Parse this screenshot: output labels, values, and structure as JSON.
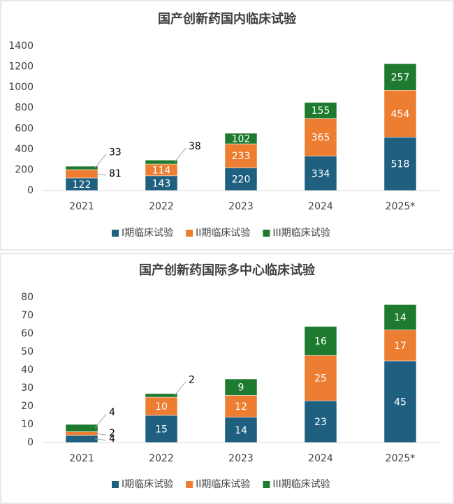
{
  "chart_data": [
    {
      "type": "stacked_bar",
      "title": "国产创新药国内临床试验",
      "categories": [
        "2021",
        "2022",
        "2023",
        "2024",
        "2025*"
      ],
      "series": [
        {
          "name": "I期临床试验",
          "color": "#1f5f7f",
          "values": [
            122,
            143,
            220,
            334,
            518
          ]
        },
        {
          "name": "II期临床试验",
          "color": "#ed7d31",
          "values": [
            81,
            114,
            233,
            365,
            454
          ]
        },
        {
          "name": "III期临床试验",
          "color": "#1e7a2e",
          "values": [
            33,
            38,
            102,
            155,
            257
          ]
        }
      ],
      "ylim": [
        0,
        1400
      ],
      "yticks": [
        0,
        200,
        400,
        600,
        800,
        1000,
        1200,
        1400
      ],
      "grid": false,
      "legend": "bottom"
    },
    {
      "type": "stacked_bar",
      "title": "国产创新药国际多中心临床试验",
      "categories": [
        "2021",
        "2022",
        "2023",
        "2024",
        "2025*"
      ],
      "series": [
        {
          "name": "I期临床试验",
          "color": "#1f5f7f",
          "values": [
            4,
            15,
            14,
            23,
            45
          ]
        },
        {
          "name": "II期临床试验",
          "color": "#ed7d31",
          "values": [
            2,
            10,
            12,
            25,
            17
          ]
        },
        {
          "name": "III期临床试验",
          "color": "#1e7a2e",
          "values": [
            4,
            2,
            9,
            16,
            14
          ]
        }
      ],
      "ylim": [
        0,
        80
      ],
      "yticks": [
        0,
        10,
        20,
        30,
        40,
        50,
        60,
        70,
        80
      ],
      "grid": false,
      "legend": "bottom"
    }
  ]
}
